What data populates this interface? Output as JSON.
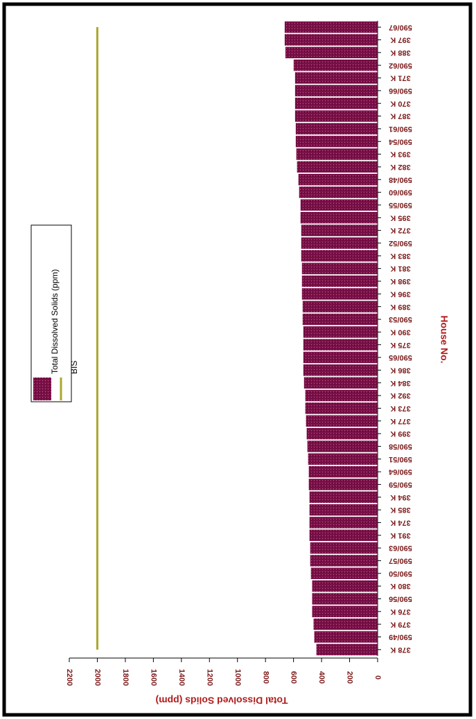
{
  "chart_data": {
    "type": "bar",
    "x_label": "House No.",
    "y_label": "Total Dissolved Solids (ppm)",
    "categories": [
      "378 K",
      "590/49",
      "379 K",
      "376 K",
      "590/56",
      "380 K",
      "590/50",
      "590/57",
      "590/63",
      "391 K",
      "374 K",
      "385 K",
      "394 K",
      "590/59",
      "590/64",
      "590/51",
      "590/58",
      "399 K",
      "377 K",
      "373 K",
      "392 K",
      "384 K",
      "386 K",
      "590/65",
      "375 K",
      "390 K",
      "590/53",
      "389 K",
      "396 K",
      "398 K",
      "381 K",
      "383 K",
      "590/52",
      "372 K",
      "395 K",
      "590/55",
      "590/60",
      "590/48",
      "382 K",
      "393 K",
      "590/54",
      "590/61",
      "387 K",
      "370 K",
      "590/66",
      "371 K",
      "590/62",
      "388 K",
      "397 K",
      "590/67"
    ],
    "series": [
      {
        "name": "Total Dissolved Solids (ppm)",
        "color": "#7a1048",
        "values": [
          437,
          452,
          457,
          467,
          467,
          467,
          476,
          481,
          481,
          486,
          486,
          486,
          486,
          491,
          491,
          496,
          501,
          506,
          511,
          516,
          516,
          525,
          530,
          530,
          530,
          530,
          535,
          535,
          540,
          540,
          540,
          545,
          545,
          545,
          550,
          550,
          560,
          565,
          575,
          580,
          584,
          584,
          589,
          589,
          589,
          589,
          599,
          658,
          663,
          663
        ]
      },
      {
        "name": "BIS",
        "type": "line",
        "color": "#a9a82a",
        "values": [
          2000,
          2000,
          2000,
          2000,
          2000,
          2000,
          2000,
          2000,
          2000,
          2000,
          2000,
          2000,
          2000,
          2000,
          2000,
          2000,
          2000,
          2000,
          2000,
          2000,
          2000,
          2000,
          2000,
          2000,
          2000,
          2000,
          2000,
          2000,
          2000,
          2000,
          2000,
          2000,
          2000,
          2000,
          2000,
          2000,
          2000,
          2000,
          2000,
          2000,
          2000,
          2000,
          2000,
          2000,
          2000,
          2000,
          2000,
          2000,
          2000,
          2000
        ]
      }
    ],
    "ylim": [
      0,
      2200
    ],
    "yticks": [
      0,
      200,
      400,
      600,
      800,
      1000,
      1200,
      1400,
      1600,
      1800,
      2000,
      2200
    ]
  }
}
